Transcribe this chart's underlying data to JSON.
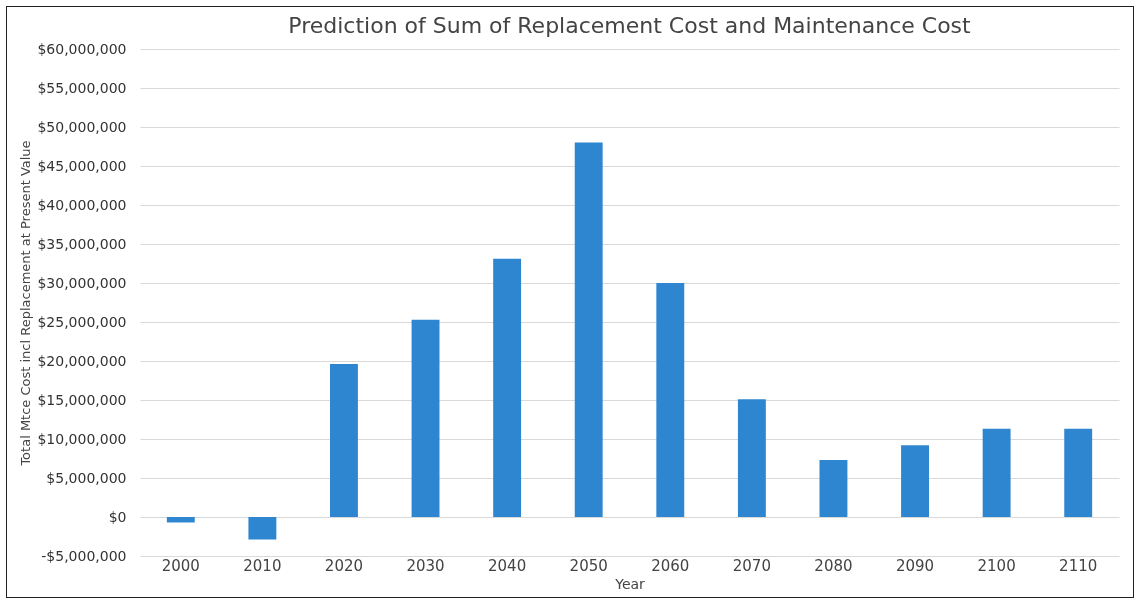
{
  "chart_data": {
    "type": "bar",
    "title": "Prediction of Sum of Replacement Cost and Maintenance Cost",
    "xlabel": "Year",
    "ylabel": "Total Mtce Cost incl Replacement at Present Value",
    "categories": [
      "2000",
      "2010",
      "2020",
      "2030",
      "2040",
      "2050",
      "2060",
      "2070",
      "2080",
      "2090",
      "2100",
      "2110"
    ],
    "values": [
      -700000,
      -2900000,
      19600000,
      25300000,
      33100000,
      48000000,
      30000000,
      15100000,
      7300000,
      9200000,
      11300000,
      11300000
    ],
    "color": "#2e86d0",
    "ylim": [
      -5000000,
      60000000
    ],
    "yticks": [
      {
        "value": -5000000,
        "label": "-$5,000,000"
      },
      {
        "value": 0,
        "label": "$0"
      },
      {
        "value": 5000000,
        "label": "$5,000,000"
      },
      {
        "value": 10000000,
        "label": "$10,000,000"
      },
      {
        "value": 15000000,
        "label": "$15,000,000"
      },
      {
        "value": 20000000,
        "label": "$20,000,000"
      },
      {
        "value": 25000000,
        "label": "$25,000,000"
      },
      {
        "value": 30000000,
        "label": "$30,000,000"
      },
      {
        "value": 35000000,
        "label": "$35,000,000"
      },
      {
        "value": 40000000,
        "label": "$40,000,000"
      },
      {
        "value": 45000000,
        "label": "$45,000,000"
      },
      {
        "value": 50000000,
        "label": "$50,000,000"
      },
      {
        "value": 55000000,
        "label": "$55,000,000"
      },
      {
        "value": 60000000,
        "label": "$60,000,000"
      }
    ],
    "grid": "y"
  }
}
